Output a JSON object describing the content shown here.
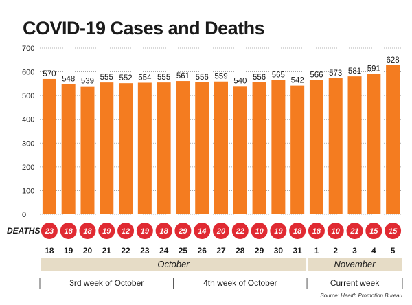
{
  "chart_data": {
    "type": "bar",
    "title": "COVID-19 Cases and Deaths",
    "categories": [
      "18",
      "19",
      "20",
      "21",
      "22",
      "23",
      "24",
      "25",
      "26",
      "27",
      "28",
      "29",
      "30",
      "31",
      "1",
      "2",
      "3",
      "4",
      "5"
    ],
    "values": [
      570,
      548,
      539,
      555,
      552,
      554,
      555,
      561,
      556,
      559,
      540,
      556,
      565,
      542,
      566,
      573,
      581,
      591,
      628
    ],
    "deaths_label": "DEATHS",
    "deaths": [
      23,
      18,
      18,
      19,
      12,
      19,
      18,
      29,
      14,
      20,
      22,
      10,
      19,
      18,
      18,
      10,
      21,
      15,
      15
    ],
    "highlight_deaths": [
      23,
      18,
      18,
      19,
      12,
      19,
      18,
      29,
      14,
      20,
      22,
      10,
      19,
      18,
      18,
      10,
      21,
      15,
      15
    ],
    "yticks": [
      0,
      100,
      200,
      300,
      400,
      500,
      600,
      700
    ],
    "ylim": [
      0,
      700
    ],
    "grid": true,
    "months": [
      {
        "label": "October",
        "start": 0,
        "end": 13
      },
      {
        "label": "November",
        "start": 14,
        "end": 18
      }
    ],
    "weeks": [
      {
        "label": "3rd week of October",
        "start": 0,
        "end": 6
      },
      {
        "label": "4th week of October",
        "start": 7,
        "end": 13
      },
      {
        "label": "Current week",
        "start": 14,
        "end": 18
      }
    ],
    "source": "Source: Health Promotion Bureau"
  },
  "colors": {
    "bar": "#f47c20",
    "death_circle": "#e02a32",
    "month_band": "#e6dcc6",
    "grid": "#9a9a9a",
    "text": "#1a1a1a"
  }
}
